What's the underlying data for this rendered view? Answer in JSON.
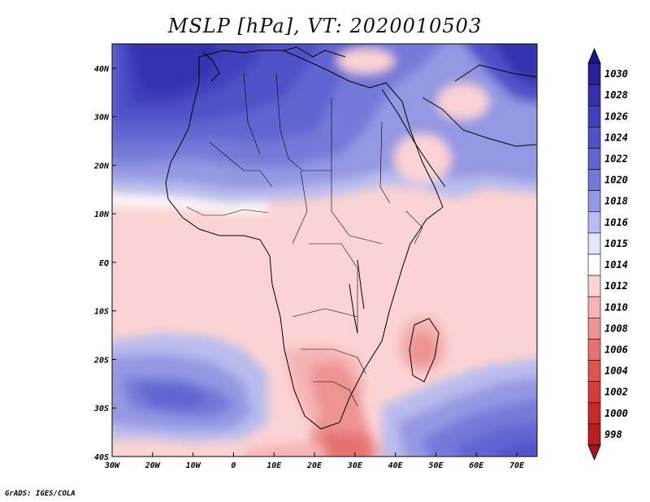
{
  "title": "MSLP [hPa], VT: 2020010503",
  "credit": "GrADS: IGES/COLA",
  "map": {
    "lon_range": [
      -30,
      75
    ],
    "lat_range": [
      -40,
      45
    ],
    "lon_ticks": [
      {
        "value": -30,
        "label": "30W"
      },
      {
        "value": -20,
        "label": "20W"
      },
      {
        "value": -10,
        "label": "10W"
      },
      {
        "value": 0,
        "label": "0"
      },
      {
        "value": 10,
        "label": "10E"
      },
      {
        "value": 20,
        "label": "20E"
      },
      {
        "value": 30,
        "label": "30E"
      },
      {
        "value": 40,
        "label": "40E"
      },
      {
        "value": 50,
        "label": "50E"
      },
      {
        "value": 60,
        "label": "60E"
      },
      {
        "value": 70,
        "label": "70E"
      }
    ],
    "lat_ticks": [
      {
        "value": 40,
        "label": "40N"
      },
      {
        "value": 30,
        "label": "30N"
      },
      {
        "value": 20,
        "label": "20N"
      },
      {
        "value": 10,
        "label": "10N"
      },
      {
        "value": 0,
        "label": "EQ"
      },
      {
        "value": -10,
        "label": "10S"
      },
      {
        "value": -20,
        "label": "20S"
      },
      {
        "value": -30,
        "label": "30S"
      },
      {
        "value": -40,
        "label": "40S"
      }
    ]
  },
  "colorbar": {
    "levels": [
      {
        "label": "1030",
        "color": "#27219a"
      },
      {
        "label": "1028",
        "color": "#3430ad"
      },
      {
        "label": "1026",
        "color": "#3f40bb"
      },
      {
        "label": "1024",
        "color": "#4f51c7"
      },
      {
        "label": "1022",
        "color": "#6165d1"
      },
      {
        "label": "1020",
        "color": "#7479d9"
      },
      {
        "label": "1018",
        "color": "#9498e2"
      },
      {
        "label": "1016",
        "color": "#b9bcee"
      },
      {
        "label": "1015",
        "color": "#e3e5fa"
      },
      {
        "label": "1014",
        "color": "#ffffff"
      },
      {
        "label": "1012",
        "color": "#fbd3d3"
      },
      {
        "label": "1010",
        "color": "#f6b4b4"
      },
      {
        "label": "1008",
        "color": "#ee9393"
      },
      {
        "label": "1006",
        "color": "#e57272"
      },
      {
        "label": "1004",
        "color": "#dc5454"
      },
      {
        "label": "1002",
        "color": "#d23c3c"
      },
      {
        "label": "1000",
        "color": "#c62a2a"
      },
      {
        "label": "998",
        "color": "#b81e1e"
      }
    ],
    "top_arrow_color": "#1f1580",
    "bottom_arrow_color": "#a61717"
  }
}
